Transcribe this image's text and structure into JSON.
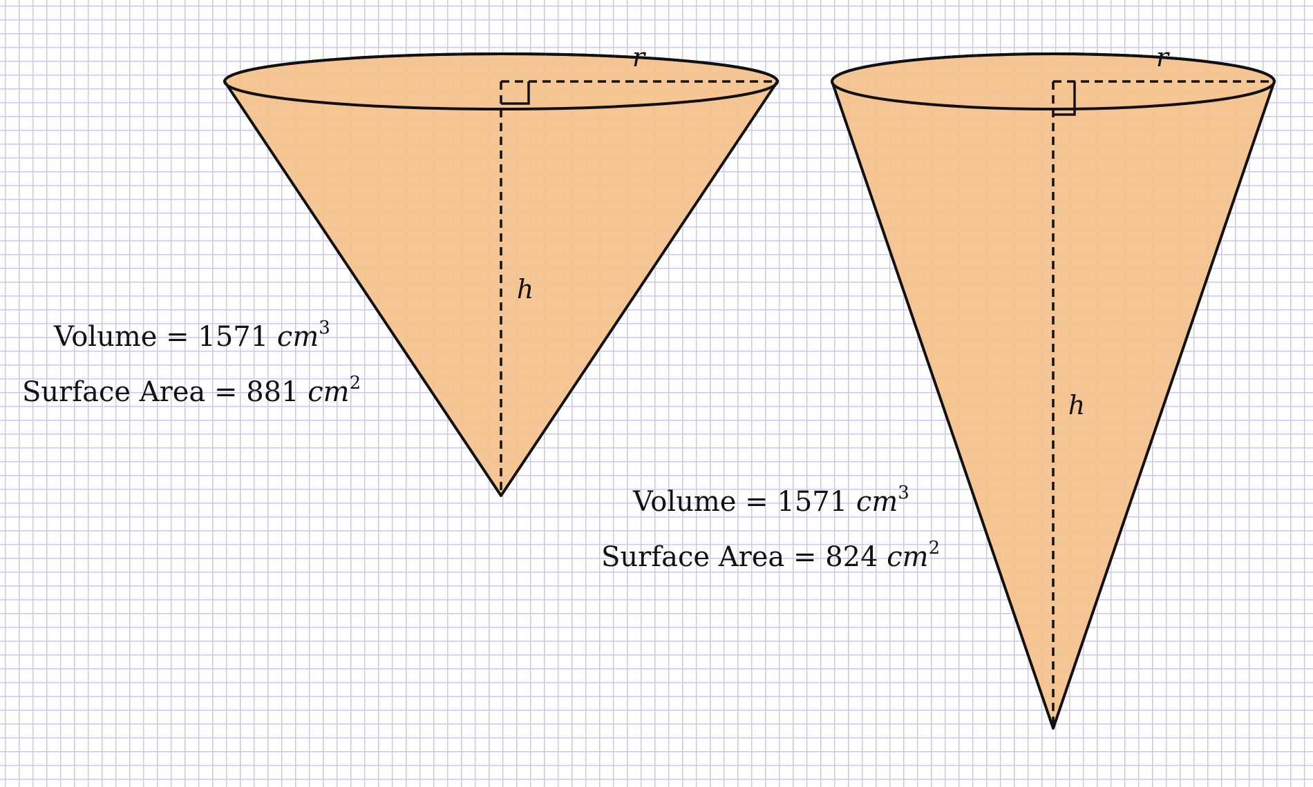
{
  "colors": {
    "cone_fill": "#f4c18a",
    "outline": "#111111",
    "grid": "#c9c9ef"
  },
  "cones": [
    {
      "radius_label": "r",
      "height_label": "h",
      "volume": {
        "label": "Volume = ",
        "value": "1571",
        "unit_base": "cm",
        "unit_exp": "3"
      },
      "surface_area": {
        "label": "Surface Area = ",
        "value": "881",
        "unit_base": "cm",
        "unit_exp": "2"
      }
    },
    {
      "radius_label": "r",
      "height_label": "h",
      "volume": {
        "label": "Volume = ",
        "value": "1571",
        "unit_base": "cm",
        "unit_exp": "3"
      },
      "surface_area": {
        "label": "Surface Area = ",
        "value": "824",
        "unit_base": "cm",
        "unit_exp": "2"
      }
    }
  ]
}
